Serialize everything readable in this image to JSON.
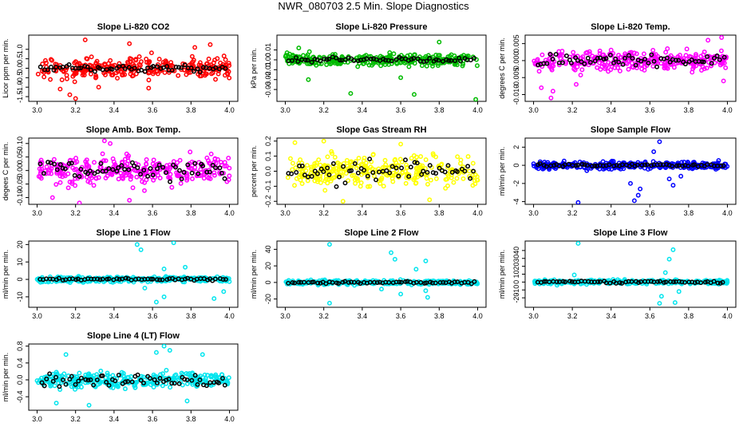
{
  "page": {
    "title": "NWR_080703  2.5 Min. Slope Diagnostics"
  },
  "chart_data": [
    {
      "type": "scatter",
      "title": "Slope Li-820 CO2",
      "ylabel": "Licor ppm per min.",
      "xlim": [
        3.0,
        4.0
      ],
      "ylim": [
        -1.75,
        1.75
      ],
      "xticks": [
        3.0,
        3.2,
        3.4,
        3.6,
        3.8,
        4.0
      ],
      "xtick_labels": [
        "3.0",
        "3.2",
        "3.4",
        "3.6",
        "3.8",
        "4.0"
      ],
      "yticks": [
        -1.5,
        -1.0,
        -0.5,
        0.0,
        0.5,
        1.0
      ],
      "ytick_labels": [
        "-1.5",
        "-1.0",
        "-0.5",
        "0.0",
        "0.5",
        "1.0"
      ],
      "color": "#ff0000",
      "spread": 0.55,
      "outliers": [
        [
          3.2,
          -1.6
        ],
        [
          3.12,
          -1.1
        ],
        [
          3.17,
          -1.4
        ],
        [
          3.25,
          1.5
        ],
        [
          3.32,
          -1.0
        ],
        [
          3.48,
          1.3
        ],
        [
          3.9,
          1.25
        ],
        [
          3.58,
          -1.05
        ],
        [
          3.82,
          1.1
        ]
      ],
      "ref_spread": 0.18,
      "seed": 11
    },
    {
      "type": "scatter",
      "title": "Slope Li-820 Pressure",
      "ylabel": "kPa per min.",
      "xlim": [
        3.0,
        4.0
      ],
      "ylim": [
        -0.042,
        0.025
      ],
      "xticks": [
        3.0,
        3.2,
        3.4,
        3.6,
        3.8,
        4.0
      ],
      "xtick_labels": [
        "3.0",
        "3.2",
        "3.4",
        "3.6",
        "3.8",
        "4.0"
      ],
      "yticks": [
        -0.03,
        -0.02,
        -0.01,
        0.0,
        0.01
      ],
      "ytick_labels": [
        "-0.03",
        "-0.02",
        "-0.01",
        "0.00",
        "0.01"
      ],
      "color": "#00bb00",
      "spread": 0.006,
      "outliers": [
        [
          3.34,
          -0.034
        ],
        [
          3.67,
          -0.035
        ],
        [
          3.99,
          -0.04
        ],
        [
          3.12,
          -0.02
        ],
        [
          3.6,
          -0.018
        ],
        [
          3.8,
          0.018
        ],
        [
          3.07,
          0.012
        ]
      ],
      "ref_spread": 0.002,
      "seed": 23
    },
    {
      "type": "scatter",
      "title": "Slope Li-820 Temp.",
      "ylabel": "degrees C per min.",
      "xlim": [
        3.0,
        4.0
      ],
      "ylim": [
        -0.012,
        0.0075
      ],
      "xticks": [
        3.0,
        3.2,
        3.4,
        3.6,
        3.8,
        4.0
      ],
      "xtick_labels": [
        "3.0",
        "3.2",
        "3.4",
        "3.6",
        "3.8",
        "4.0"
      ],
      "yticks": [
        -0.01,
        -0.005,
        0.0,
        0.005
      ],
      "ytick_labels": [
        "-0.010",
        "-0.005",
        "0.000",
        "0.005"
      ],
      "color": "#ff00ff",
      "spread": 0.0028,
      "outliers": [
        [
          3.09,
          -0.011
        ],
        [
          3.1,
          -0.009
        ],
        [
          3.04,
          -0.008
        ],
        [
          3.97,
          0.0068
        ],
        [
          3.9,
          0.006
        ],
        [
          3.22,
          -0.007
        ],
        [
          3.98,
          -0.006
        ]
      ],
      "ref_spread": 0.0018,
      "seed": 37
    },
    {
      "type": "scatter",
      "title": "Slope Amb. Box Temp.",
      "ylabel": "degees C per min.",
      "xlim": [
        3.0,
        4.0
      ],
      "ylim": [
        -0.125,
        0.12
      ],
      "xticks": [
        3.0,
        3.2,
        3.4,
        3.6,
        3.8,
        4.0
      ],
      "xtick_labels": [
        "3.0",
        "3.2",
        "3.4",
        "3.6",
        "3.8",
        "4.0"
      ],
      "yticks": [
        -0.1,
        -0.05,
        0.0,
        0.05,
        0.1
      ],
      "ytick_labels": [
        "-0.10",
        "-0.05",
        "0.00",
        "0.05",
        "0.10"
      ],
      "color": "#ff00ff",
      "spread": 0.05,
      "outliers": [
        [
          3.35,
          0.11
        ],
        [
          3.38,
          0.1
        ],
        [
          3.22,
          -0.12
        ],
        [
          3.48,
          -0.11
        ],
        [
          3.08,
          -0.1
        ]
      ],
      "ref_spread": 0.035,
      "seed": 41
    },
    {
      "type": "scatter",
      "title": "Slope Gas Stream RH",
      "ylabel": "percent per min.",
      "xlim": [
        3.0,
        4.0
      ],
      "ylim": [
        -0.22,
        0.22
      ],
      "xticks": [
        3.0,
        3.2,
        3.4,
        3.6,
        3.8,
        4.0
      ],
      "xtick_labels": [
        "3.0",
        "3.2",
        "3.4",
        "3.6",
        "3.8",
        "4.0"
      ],
      "yticks": [
        -0.2,
        -0.1,
        0.0,
        0.1,
        0.2
      ],
      "ytick_labels": [
        "-0.2",
        "-0.1",
        "0.0",
        "0.1",
        "0.2"
      ],
      "color": "#ffff00",
      "spread": 0.1,
      "outliers": [
        [
          3.05,
          0.19
        ],
        [
          3.2,
          0.2
        ],
        [
          3.6,
          0.18
        ],
        [
          3.3,
          -0.2
        ],
        [
          3.75,
          -0.19
        ]
      ],
      "ref_spread": 0.07,
      "seed": 53
    },
    {
      "type": "scatter",
      "title": "Slope Sample Flow",
      "ylabel": "ml/min per min.",
      "xlim": [
        3.0,
        4.0
      ],
      "ylim": [
        -4.3,
        3.0
      ],
      "xticks": [
        3.0,
        3.2,
        3.4,
        3.6,
        3.8,
        4.0
      ],
      "xtick_labels": [
        "3.0",
        "3.2",
        "3.4",
        "3.6",
        "3.8",
        "4.0"
      ],
      "yticks": [
        -4,
        -2,
        0,
        2
      ],
      "ytick_labels": [
        "-4",
        "-2",
        "0",
        "2"
      ],
      "color": "#0000ff",
      "spread": 0.4,
      "outliers": [
        [
          3.23,
          -4.1
        ],
        [
          3.52,
          -3.9
        ],
        [
          3.54,
          -3.3
        ],
        [
          3.5,
          -2.0
        ],
        [
          3.65,
          2.6
        ],
        [
          3.72,
          -2.2
        ],
        [
          3.7,
          -1.5
        ],
        [
          3.62,
          1.5
        ],
        [
          3.76,
          -1.2
        ],
        [
          3.55,
          -2.6
        ]
      ],
      "ref_spread": 0.15,
      "seed": 67
    },
    {
      "type": "scatter",
      "title": "Slope Line 1 Flow",
      "ylabel": "ml/min per min.",
      "xlim": [
        3.0,
        4.0
      ],
      "ylim": [
        -16,
        22
      ],
      "xticks": [
        3.0,
        3.2,
        3.4,
        3.6,
        3.8,
        4.0
      ],
      "xtick_labels": [
        "3.0",
        "3.2",
        "3.4",
        "3.6",
        "3.8",
        "4.0"
      ],
      "yticks": [
        -10,
        0,
        10,
        20
      ],
      "ytick_labels": [
        "-10",
        "0",
        "10",
        "20"
      ],
      "color": "#00e5ee",
      "spread": 1.5,
      "outliers": [
        [
          3.52,
          20
        ],
        [
          3.54,
          17
        ],
        [
          3.71,
          21
        ],
        [
          3.66,
          6
        ],
        [
          3.56,
          -5
        ],
        [
          3.62,
          -13
        ],
        [
          3.66,
          -10
        ],
        [
          3.92,
          -11
        ],
        [
          3.97,
          -7
        ],
        [
          3.77,
          7
        ]
      ],
      "ref_spread": 0.6,
      "seed": 71
    },
    {
      "type": "scatter",
      "title": "Slope Line 2 Flow",
      "ylabel": "ml/min per min.",
      "xlim": [
        3.0,
        4.0
      ],
      "ylim": [
        -30,
        50
      ],
      "xticks": [
        3.0,
        3.2,
        3.4,
        3.6,
        3.8,
        4.0
      ],
      "xtick_labels": [
        "3.0",
        "3.2",
        "3.4",
        "3.6",
        "3.8",
        "4.0"
      ],
      "yticks": [
        -20,
        0,
        20,
        40
      ],
      "ytick_labels": [
        "-20",
        "0",
        "20",
        "40"
      ],
      "color": "#00e5ee",
      "spread": 2.5,
      "outliers": [
        [
          3.23,
          46
        ],
        [
          3.55,
          36
        ],
        [
          3.57,
          28
        ],
        [
          3.73,
          26
        ],
        [
          3.68,
          16
        ],
        [
          3.23,
          -25
        ],
        [
          3.6,
          -14
        ],
        [
          3.74,
          -18
        ],
        [
          3.73,
          -10
        ],
        [
          3.5,
          -8
        ]
      ],
      "ref_spread": 1.2,
      "seed": 83
    },
    {
      "type": "scatter",
      "title": "Slope Line 3 Flow",
      "ylabel": "ml/min per min.",
      "xlim": [
        3.0,
        4.0
      ],
      "ylim": [
        -32,
        52
      ],
      "xticks": [
        3.0,
        3.2,
        3.4,
        3.6,
        3.8,
        4.0
      ],
      "xtick_labels": [
        "3.0",
        "3.2",
        "3.4",
        "3.6",
        "3.8",
        "4.0"
      ],
      "yticks": [
        -20,
        -10,
        0,
        10,
        20,
        30,
        40
      ],
      "ytick_labels": [
        "-20",
        "-10",
        "0",
        "10",
        "20",
        "30",
        "40"
      ],
      "color": "#00e5ee",
      "spread": 2.5,
      "outliers": [
        [
          3.23,
          49
        ],
        [
          3.72,
          41
        ],
        [
          3.7,
          29
        ],
        [
          3.73,
          -26
        ],
        [
          3.65,
          -27
        ],
        [
          3.66,
          -18
        ],
        [
          3.75,
          -12
        ],
        [
          3.68,
          12
        ],
        [
          3.21,
          9
        ]
      ],
      "ref_spread": 1.5,
      "seed": 97
    },
    {
      "type": "scatter",
      "title": "Slope Line 4 (LT) Flow",
      "ylabel": "ml/min per min.",
      "xlim": [
        3.0,
        4.0
      ],
      "ylim": [
        -0.72,
        0.85
      ],
      "xticks": [
        3.0,
        3.2,
        3.4,
        3.6,
        3.8,
        4.0
      ],
      "xtick_labels": [
        "3.0",
        "3.2",
        "3.4",
        "3.6",
        "3.8",
        "4.0"
      ],
      "yticks": [
        -0.4,
        0.0,
        0.4,
        0.8
      ],
      "ytick_labels": [
        "-0.4",
        "0.0",
        "0.4",
        "0.8"
      ],
      "color": "#00e5ee",
      "spread": 0.18,
      "outliers": [
        [
          3.66,
          0.8
        ],
        [
          3.62,
          0.65
        ],
        [
          3.15,
          0.6
        ],
        [
          3.27,
          -0.6
        ],
        [
          3.1,
          -0.55
        ],
        [
          3.86,
          0.6
        ],
        [
          3.78,
          -0.5
        ],
        [
          3.69,
          0.7
        ]
      ],
      "ref_spread": 0.16,
      "seed": 101
    }
  ]
}
